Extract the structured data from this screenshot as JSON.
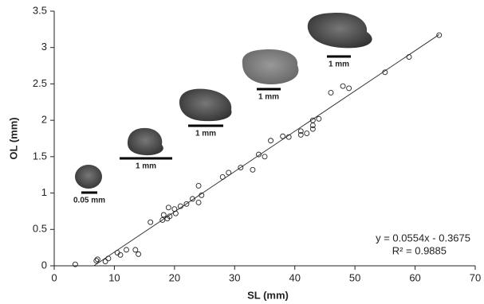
{
  "chart_data": {
    "type": "scatter",
    "x_label": "SL (mm)",
    "y_label": "OL  (mm)",
    "xlim": [
      0,
      70
    ],
    "xticks": [
      0,
      10,
      20,
      30,
      40,
      50,
      60,
      70
    ],
    "ylim": [
      0,
      3.5
    ],
    "yticks": [
      0,
      0.5,
      1,
      1.5,
      2,
      2.5,
      3,
      3.5
    ],
    "grid": false,
    "color": "#222222",
    "x": [
      3.5,
      7,
      7.2,
      8.5,
      9,
      10.5,
      11,
      12,
      13.5,
      14,
      16,
      18,
      18.2,
      18.8,
      19,
      19.2,
      20,
      20.2,
      21,
      22,
      23,
      24,
      24,
      24.5,
      28,
      29,
      31,
      33,
      34,
      35,
      36,
      38,
      39,
      41,
      41,
      42,
      43,
      43,
      43,
      44,
      46,
      48,
      49,
      55,
      59,
      64
    ],
    "values": [
      0.02,
      0.07,
      0.09,
      0.06,
      0.1,
      0.18,
      0.15,
      0.22,
      0.22,
      0.16,
      0.6,
      0.63,
      0.7,
      0.65,
      0.8,
      0.68,
      0.78,
      0.72,
      0.82,
      0.85,
      0.92,
      1.1,
      0.87,
      0.97,
      1.22,
      1.28,
      1.35,
      1.32,
      1.53,
      1.5,
      1.72,
      1.78,
      1.77,
      1.8,
      1.85,
      1.82,
      1.88,
      1.93,
      2.0,
      2.02,
      2.38,
      2.47,
      2.44,
      2.66,
      2.87,
      3.17
    ],
    "trendline": {
      "x": [
        6.6,
        64
      ],
      "values": [
        0.0,
        3.178
      ],
      "equation": "y = 0.0554x - 0.3675",
      "r_squared": "R² = 0.9885"
    },
    "scale_labels": [
      "0.05 mm",
      "1 mm",
      "1 mm",
      "1 mm",
      "1 mm"
    ]
  }
}
